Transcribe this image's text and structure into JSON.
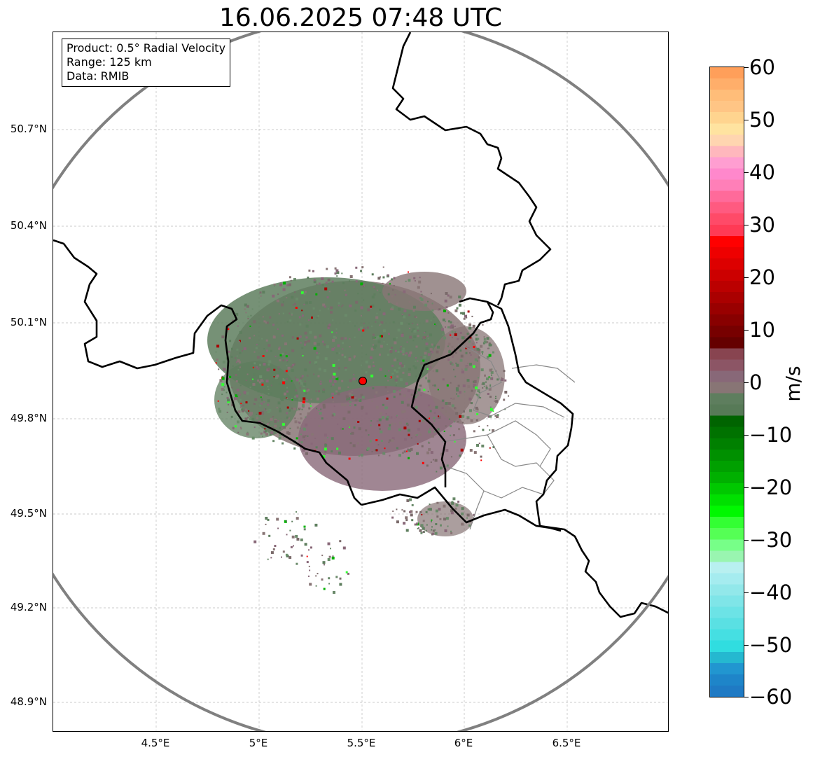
{
  "title": "16.06.2025 07:48 UTC",
  "info": {
    "product": "Product: 0.5° Radial Velocity",
    "range": "Range: 125 km",
    "data": "Data: RMIB"
  },
  "lat_ticks": [
    "50.7°N",
    "50.4°N",
    "50.1°N",
    "49.8°N",
    "49.5°N",
    "49.2°N",
    "48.9°N"
  ],
  "lon_ticks": [
    "4.5°E",
    "5°E",
    "5.5°E",
    "6°E",
    "6.5°E"
  ],
  "colorbar": {
    "unit": "m/s",
    "tick_labels": [
      "60",
      "50",
      "40",
      "30",
      "20",
      "10",
      "0",
      "−10",
      "−20",
      "−30",
      "−40",
      "−50",
      "−60"
    ],
    "min": -60,
    "max": 60,
    "colors_top_to_bottom": [
      "#ff9f5a",
      "#ffae6a",
      "#ffbd79",
      "#ffc585",
      "#ffd48f",
      "#ffe3a0",
      "#ffd5b0",
      "#ffb7bd",
      "#ff9ed1",
      "#ff88cc",
      "#ff7fb8",
      "#ff6a9a",
      "#ff5a80",
      "#ff4a68",
      "#ff3a55",
      "#ff0000",
      "#ee0000",
      "#dd0000",
      "#cc0000",
      "#bb0000",
      "#aa0000",
      "#990000",
      "#880000",
      "#770000",
      "#650000",
      "#884450",
      "#8c5565",
      "#886878",
      "#887575",
      "#5e7e5e",
      "#577a57",
      "#006400",
      "#007200",
      "#008000",
      "#009000",
      "#00a000",
      "#00b000",
      "#00c800",
      "#00e000",
      "#00f800",
      "#33ff33",
      "#55ff55",
      "#77ff88",
      "#99f5b0",
      "#b8f0f0",
      "#a5ecef",
      "#92e8ea",
      "#7fe5e8",
      "#6ce3e6",
      "#5ae0e3",
      "#45dfe2",
      "#30dde0",
      "#25b8d0",
      "#2196d0",
      "#1e85c9",
      "#1f7ac4"
    ]
  },
  "radar_site_color": "#ff0000",
  "range_ring_color": "#808080"
}
